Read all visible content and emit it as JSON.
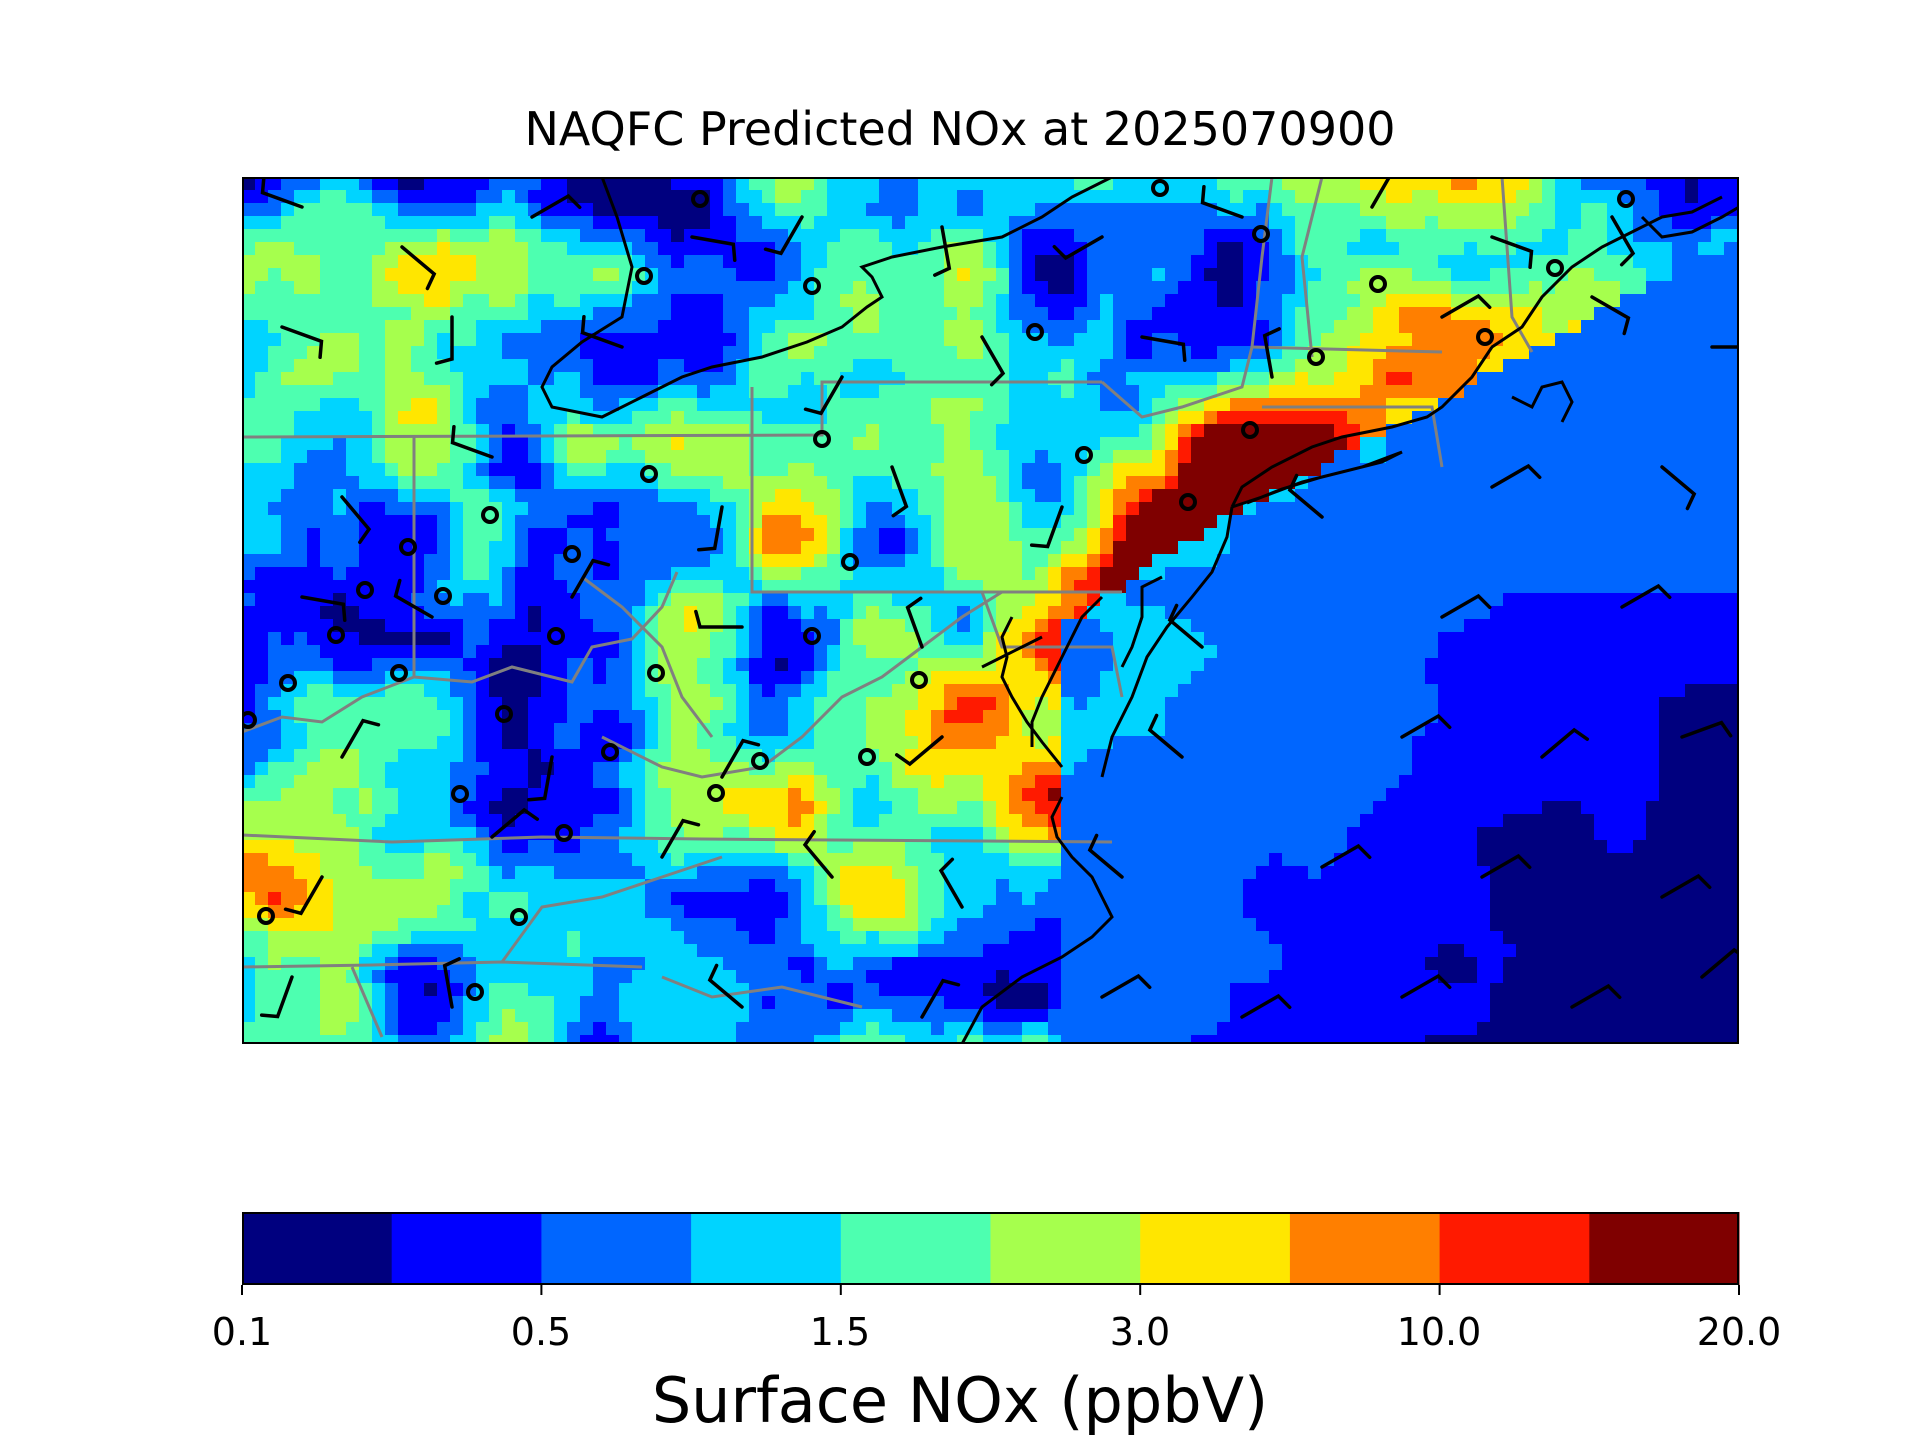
{
  "title": "NAQFC Predicted NOx at 2025070900",
  "colorbar": {
    "label": "Surface NOx (ppbV)",
    "colors": [
      "#00007f",
      "#0000ff",
      "#0066ff",
      "#00d4ff",
      "#4dffb0",
      "#a6ff4d",
      "#ffe600",
      "#ff7f00",
      "#ff1a00",
      "#7f0000"
    ],
    "tick_labels": [
      "0.1",
      "0.5",
      "1.5",
      "3.0",
      "10.0",
      "20.0"
    ]
  },
  "chart_data": {
    "type": "heatmap",
    "title": "NAQFC Predicted NOx at 2025070900",
    "colorbar_label": "Surface NOx (ppbV)",
    "colorbar_ticks": [
      "0.1",
      "0.5",
      "1.5",
      "3.0",
      "10.0",
      "20.0"
    ],
    "colorbar_levels": 10,
    "variable": "Surface NOx",
    "units": "ppbV",
    "overlays": [
      "state boundaries",
      "coastlines",
      "wind barbs",
      "station markers"
    ],
    "grid": false
  }
}
